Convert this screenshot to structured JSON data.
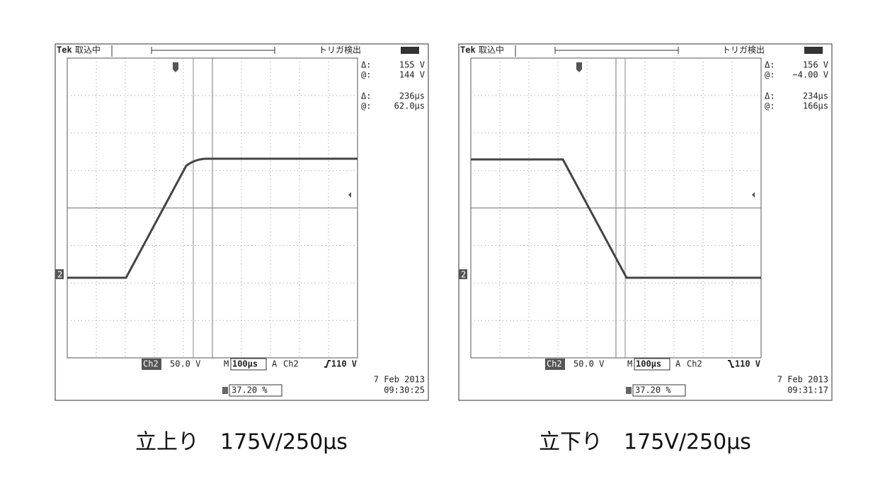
{
  "panels": [
    {
      "header": {
        "brand": "Tek",
        "status": "取込中",
        "trigger": "トリガ検出"
      },
      "readouts": [
        {
          "label": "Δ:",
          "value": "155 V"
        },
        {
          "label": "@:",
          "value": "144 V"
        },
        {
          "label": "Δ:",
          "value": "236µs"
        },
        {
          "label": "@:",
          "value": "62.0µs"
        }
      ],
      "channel_marker": "2",
      "footer": {
        "channel": "Ch2",
        "scale": "50.0 V",
        "timebase_label": "M",
        "timebase": "100µs",
        "trigger_label": "A",
        "trigger_channel": "Ch2",
        "trigger_level": "110 V",
        "position": "37.20 %",
        "date": "7 Feb 2013",
        "time": "09:30:25"
      },
      "caption": "立上り　175V/250μs"
    },
    {
      "header": {
        "brand": "Tek",
        "status": "取込中",
        "trigger": "トリガ検出"
      },
      "readouts": [
        {
          "label": "Δ:",
          "value": "156 V"
        },
        {
          "label": "@:",
          "value": "−4.00 V"
        },
        {
          "label": "Δ:",
          "value": "234µs"
        },
        {
          "label": "@:",
          "value": "166µs"
        }
      ],
      "channel_marker": "2",
      "footer": {
        "channel": "Ch2",
        "scale": "50.0 V",
        "timebase_label": "M",
        "timebase": "100µs",
        "trigger_label": "A",
        "trigger_channel": "Ch2",
        "trigger_level": "110 V",
        "position": "37.20 %",
        "date": "7 Feb 2013",
        "time": "09:31:17"
      },
      "caption": "立下り　175V/250μs"
    }
  ]
}
